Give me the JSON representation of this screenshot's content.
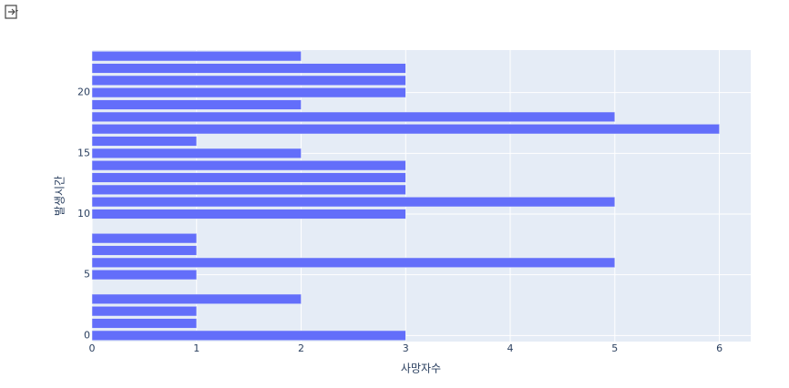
{
  "chart_data": {
    "type": "barh",
    "x_label": "사망자수",
    "y_label": "발생시간",
    "y": [
      0,
      1,
      2,
      3,
      5,
      6,
      7,
      8,
      10,
      11,
      12,
      13,
      14,
      15,
      16,
      17,
      18,
      19,
      20,
      21,
      22,
      23
    ],
    "values": [
      3,
      1,
      1,
      2,
      1,
      5,
      1,
      1,
      3,
      5,
      3,
      3,
      3,
      2,
      1,
      6,
      5,
      2,
      3,
      3,
      3,
      2
    ],
    "color": "#636efa",
    "xlim": [
      0,
      6.3
    ],
    "xticks": [
      0,
      1,
      2,
      3,
      4,
      5,
      6
    ],
    "ylim": [
      -0.5,
      23.5
    ],
    "yticks": [
      0,
      5,
      10,
      15,
      20
    ],
    "grid": true
  }
}
